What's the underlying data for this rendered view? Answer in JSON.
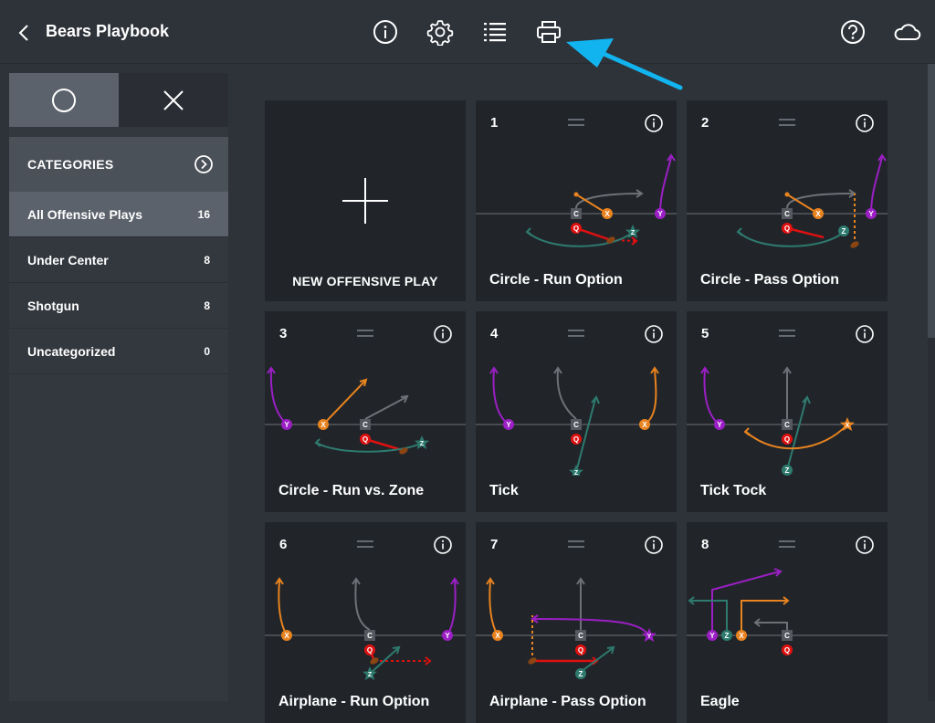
{
  "header": {
    "title": "Bears Playbook"
  },
  "toolbar": {
    "icons": [
      "back-icon",
      "info-icon",
      "gear-icon",
      "list-icon",
      "printer-icon",
      "help-icon",
      "cloud-icon"
    ]
  },
  "sidebar": {
    "categories_label": "CATEGORIES",
    "items": [
      {
        "label": "All Offensive Plays",
        "count": "16"
      },
      {
        "label": "Under Center",
        "count": "8"
      },
      {
        "label": "Shotgun",
        "count": "8"
      },
      {
        "label": "Uncategorized",
        "count": "0"
      }
    ]
  },
  "new_play": {
    "label": "NEW OFFENSIVE PLAY"
  },
  "plays": [
    {
      "number": "1",
      "name": "Circle - Run Option"
    },
    {
      "number": "2",
      "name": "Circle - Pass Option"
    },
    {
      "number": "3",
      "name": "Circle - Run vs. Zone"
    },
    {
      "number": "4",
      "name": "Tick"
    },
    {
      "number": "5",
      "name": "Tick Tock"
    },
    {
      "number": "6",
      "name": "Airplane - Run Option"
    },
    {
      "number": "7",
      "name": "Airplane - Pass Option"
    },
    {
      "number": "8",
      "name": "Eagle"
    }
  ],
  "player_labels": {
    "center": "C",
    "qb": "Q",
    "x": "X",
    "y": "Y",
    "z": "Z"
  },
  "colors": {
    "background": "#2e333a",
    "card": "#21252a",
    "orange": "#e8831f",
    "purple": "#9b1fc4",
    "red": "#e01010",
    "teal": "#2e7a6e",
    "gray": "#6e7277",
    "callout_arrow": "#12b4ef"
  }
}
